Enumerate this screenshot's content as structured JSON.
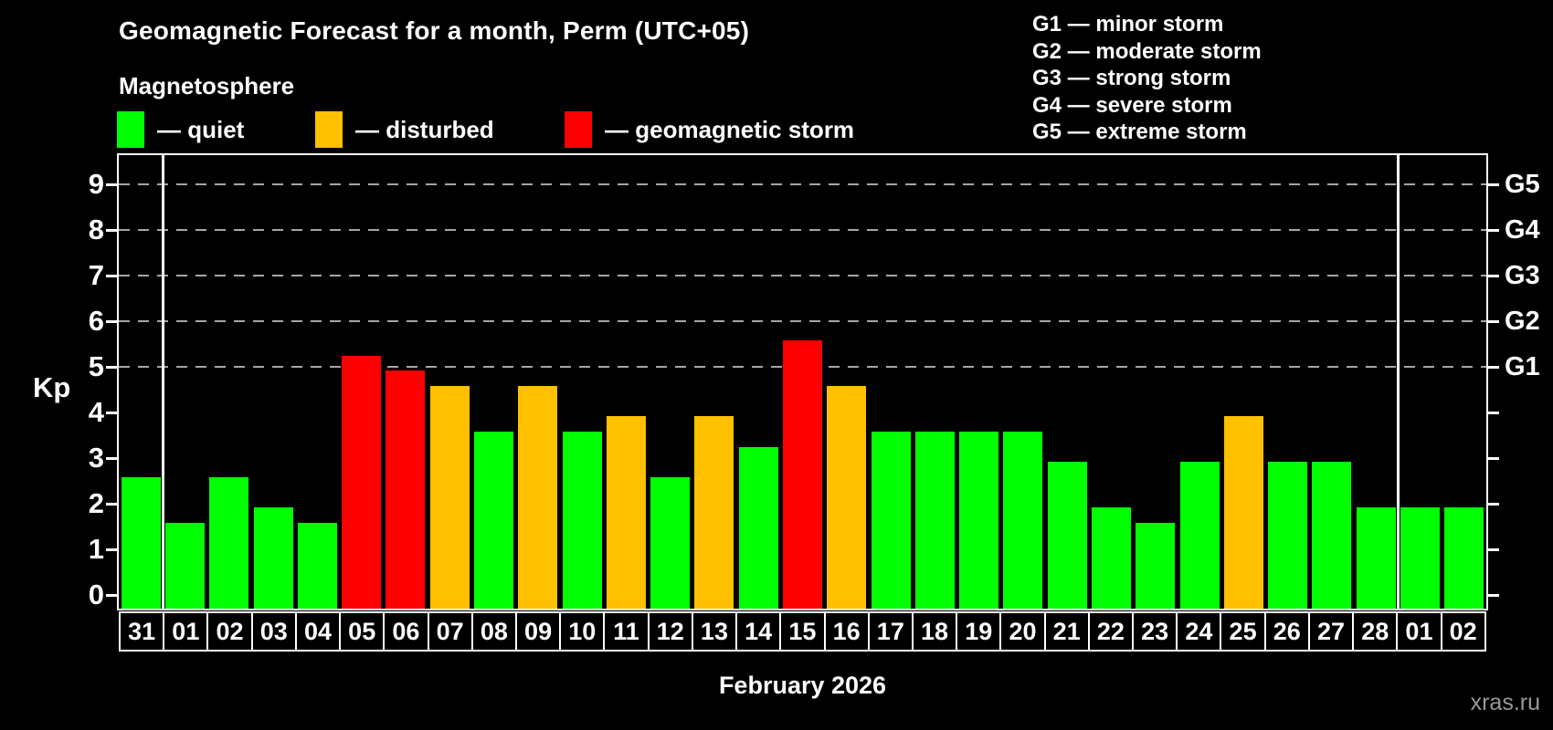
{
  "header": {
    "title": "Geomagnetic Forecast for a month, Perm (UTC+05)",
    "subtitle": "Magnetosphere"
  },
  "legend": {
    "items": [
      {
        "key": "quiet",
        "label": "— quiet",
        "color": "#00ff00"
      },
      {
        "key": "disturbed",
        "label": "— disturbed",
        "color": "#ffc000"
      },
      {
        "key": "storm",
        "label": "— geomagnetic storm",
        "color": "#ff0000"
      }
    ]
  },
  "g_scale_legend": {
    "items": [
      "G1 — minor storm",
      "G2 — moderate storm",
      "G3 — strong storm",
      "G4 — severe storm",
      "G5 — extreme storm"
    ]
  },
  "watermark": "xras.ru",
  "chart_data": {
    "type": "bar",
    "title": "Geomagnetic Forecast for a month, Perm (UTC+05)",
    "xlabel": "February 2026",
    "ylabel": "Kp",
    "ylim": [
      0,
      9
    ],
    "y_ticks": [
      0,
      1,
      2,
      3,
      4,
      5,
      6,
      7,
      8,
      9
    ],
    "gridline_kp_levels": [
      5,
      6,
      7,
      8,
      9
    ],
    "grid_style": "dashed",
    "legend_position": "top-left",
    "categories": [
      "31",
      "01",
      "02",
      "03",
      "04",
      "05",
      "06",
      "07",
      "08",
      "09",
      "10",
      "11",
      "12",
      "13",
      "14",
      "15",
      "16",
      "17",
      "18",
      "19",
      "20",
      "21",
      "22",
      "23",
      "24",
      "25",
      "26",
      "27",
      "28",
      "01",
      "02"
    ],
    "values": [
      2.67,
      1.67,
      2.67,
      2,
      1.67,
      5.33,
      5,
      4.67,
      3.67,
      4.67,
      3.67,
      4,
      2.67,
      4,
      3.33,
      5.67,
      4.67,
      3.67,
      3.67,
      3.67,
      3.67,
      3,
      2,
      1.67,
      3,
      4,
      3,
      3,
      2,
      2,
      2
    ],
    "statuses": [
      "quiet",
      "quiet",
      "quiet",
      "quiet",
      "quiet",
      "storm",
      "storm",
      "disturbed",
      "quiet",
      "disturbed",
      "quiet",
      "disturbed",
      "quiet",
      "disturbed",
      "quiet",
      "storm",
      "disturbed",
      "quiet",
      "quiet",
      "quiet",
      "quiet",
      "quiet",
      "quiet",
      "quiet",
      "quiet",
      "disturbed",
      "quiet",
      "quiet",
      "quiet",
      "quiet",
      "quiet"
    ],
    "month_separators_before_index": [
      1,
      29
    ],
    "right_axis": {
      "labels": [
        {
          "text": "G5",
          "kp": 9
        },
        {
          "text": "G4",
          "kp": 8
        },
        {
          "text": "G3",
          "kp": 7
        },
        {
          "text": "G2",
          "kp": 6
        },
        {
          "text": "G1",
          "kp": 5
        }
      ]
    },
    "colors": {
      "quiet": "#00ff00",
      "disturbed": "#ffc000",
      "storm": "#ff0000",
      "axis": "#ffffff",
      "grid": "#a6a6a6",
      "background": "#000000",
      "watermark": "#999999"
    }
  }
}
